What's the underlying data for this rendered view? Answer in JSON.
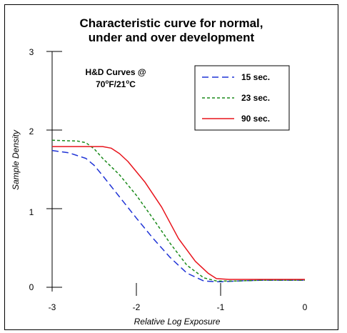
{
  "chart_data": {
    "type": "line",
    "title_lines": [
      "Characteristic curve for normal,",
      "under and over development"
    ],
    "xlabel": "Relative Log Exposure",
    "ylabel": "Sample Density",
    "xlim": [
      -3,
      0
    ],
    "ylim": [
      0,
      3
    ],
    "x_ticks": [
      "-3",
      "-2",
      "-1",
      "0"
    ],
    "y_ticks": [
      "0",
      "1",
      "2",
      "3"
    ],
    "grid": false,
    "annotation": {
      "line1": "H&D Curves @",
      "line2_parts": [
        "70",
        "o",
        "F/21",
        "o",
        "C"
      ]
    },
    "legend_position": "top-right",
    "series": [
      {
        "name": "15 sec.",
        "color": "#1f33d6",
        "dash": "dashed",
        "x": [
          -3.0,
          -2.8,
          -2.6,
          -2.5,
          -2.4,
          -2.2,
          -2.0,
          -1.8,
          -1.6,
          -1.4,
          -1.2,
          -1.05,
          -1.0,
          -0.8,
          -0.5,
          0.0
        ],
        "y": [
          1.74,
          1.71,
          1.64,
          1.55,
          1.42,
          1.15,
          0.88,
          0.62,
          0.38,
          0.18,
          0.08,
          0.07,
          0.07,
          0.08,
          0.09,
          0.09
        ]
      },
      {
        "name": "23 sec.",
        "color": "#1a8a1a",
        "dash": "dotted",
        "x": [
          -3.0,
          -2.7,
          -2.6,
          -2.5,
          -2.4,
          -2.2,
          -2.0,
          -1.8,
          -1.6,
          -1.4,
          -1.2,
          -1.05,
          -1.0,
          -0.8,
          -0.5,
          0.0
        ],
        "y": [
          1.87,
          1.86,
          1.84,
          1.76,
          1.64,
          1.43,
          1.17,
          0.87,
          0.56,
          0.28,
          0.12,
          0.08,
          0.08,
          0.08,
          0.09,
          0.09
        ]
      },
      {
        "name": "90 sec.",
        "color": "#e8131b",
        "dash": "solid",
        "x": [
          -3.0,
          -2.5,
          -2.4,
          -2.3,
          -2.2,
          -2.1,
          -1.9,
          -1.7,
          -1.5,
          -1.3,
          -1.15,
          -1.05,
          -0.9,
          -0.5,
          0.0
        ],
        "y": [
          1.79,
          1.79,
          1.79,
          1.77,
          1.7,
          1.6,
          1.34,
          1.02,
          0.62,
          0.33,
          0.18,
          0.11,
          0.1,
          0.1,
          0.1
        ]
      }
    ]
  }
}
